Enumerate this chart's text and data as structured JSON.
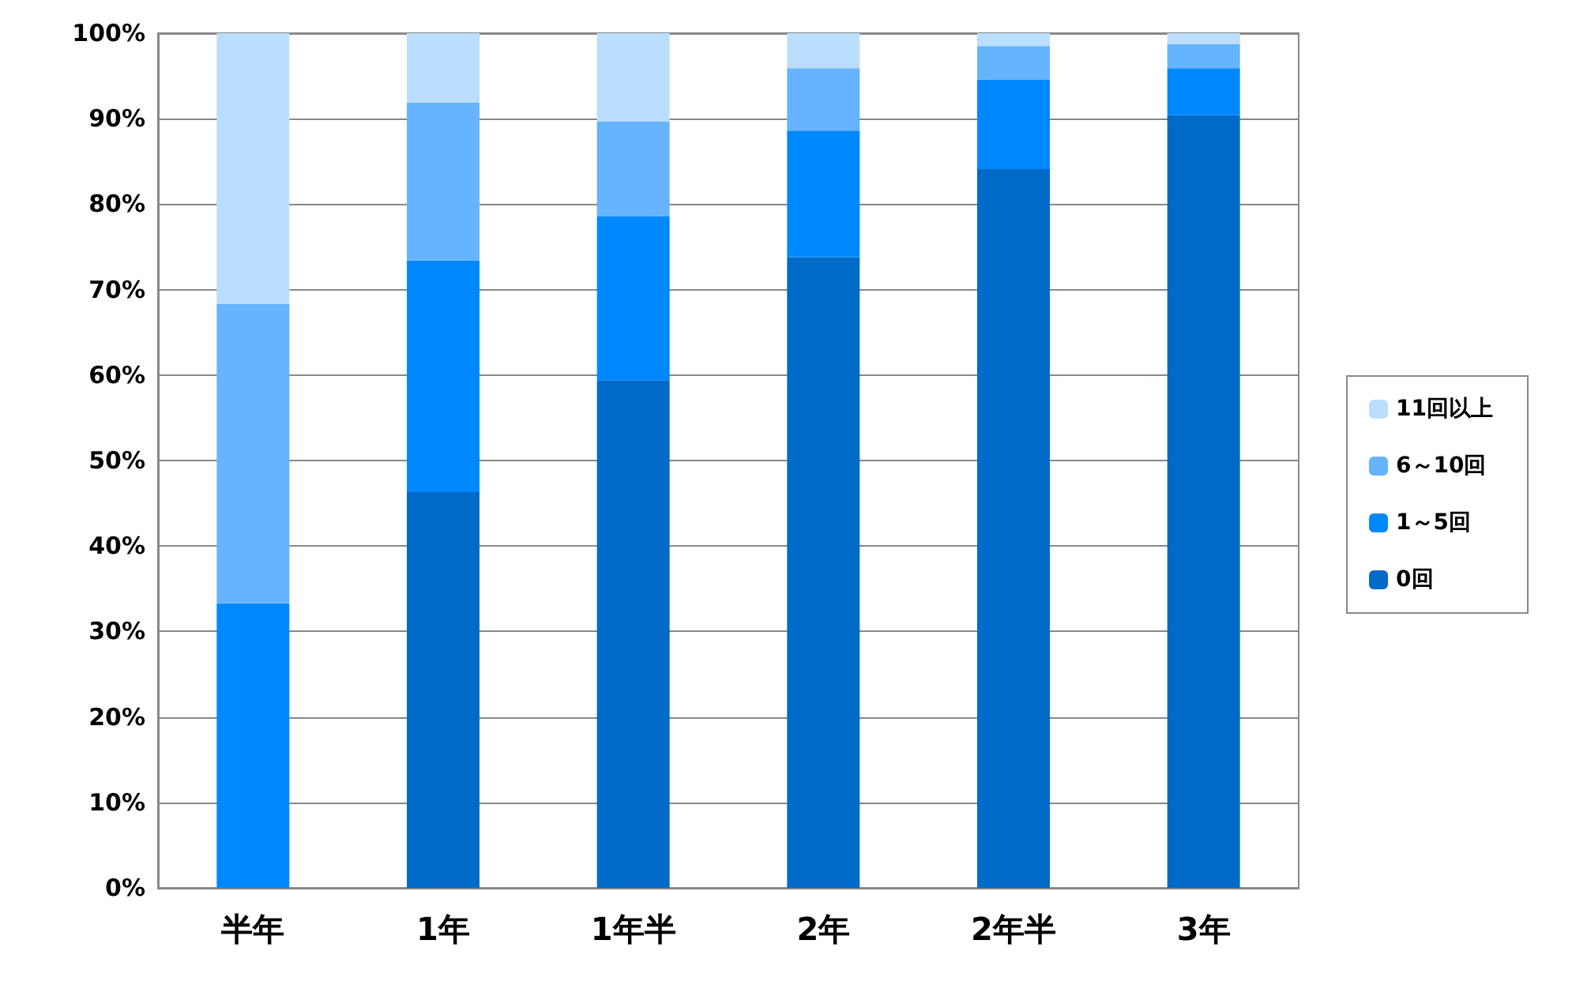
{
  "chart_data": {
    "type": "bar",
    "stacked": true,
    "categories": [
      "半年",
      "1年",
      "1年半",
      "2年",
      "2年半",
      "3年"
    ],
    "series": [
      {
        "name": "0回",
        "color": "#006ac8",
        "values": [
          0,
          46.3,
          59.4,
          73.8,
          84.1,
          90.4
        ]
      },
      {
        "name": "1～5回",
        "color": "#0088ff",
        "values": [
          33.3,
          27.1,
          19.2,
          14.8,
          10.5,
          5.5
        ]
      },
      {
        "name": "6～10回",
        "color": "#66b3ff",
        "values": [
          35,
          18.5,
          11.1,
          7.3,
          3.9,
          2.8
        ]
      },
      {
        "name": "11回以上",
        "color": "#bbdeff",
        "values": [
          31.7,
          8.1,
          10.3,
          4.1,
          1.5,
          1.3
        ]
      }
    ],
    "ylim": [
      0,
      100
    ],
    "yticks": [
      {
        "value": 0,
        "label": "0%"
      },
      {
        "value": 10,
        "label": "10%"
      },
      {
        "value": 20,
        "label": "20%"
      },
      {
        "value": 30,
        "label": "30%"
      },
      {
        "value": 40,
        "label": "40%"
      },
      {
        "value": 50,
        "label": "50%"
      },
      {
        "value": 60,
        "label": "60%"
      },
      {
        "value": 70,
        "label": "70%"
      },
      {
        "value": 80,
        "label": "80%"
      },
      {
        "value": 90,
        "label": "90%"
      },
      {
        "value": 100,
        "label": "100%"
      }
    ],
    "grid": "y",
    "legend": "right"
  }
}
